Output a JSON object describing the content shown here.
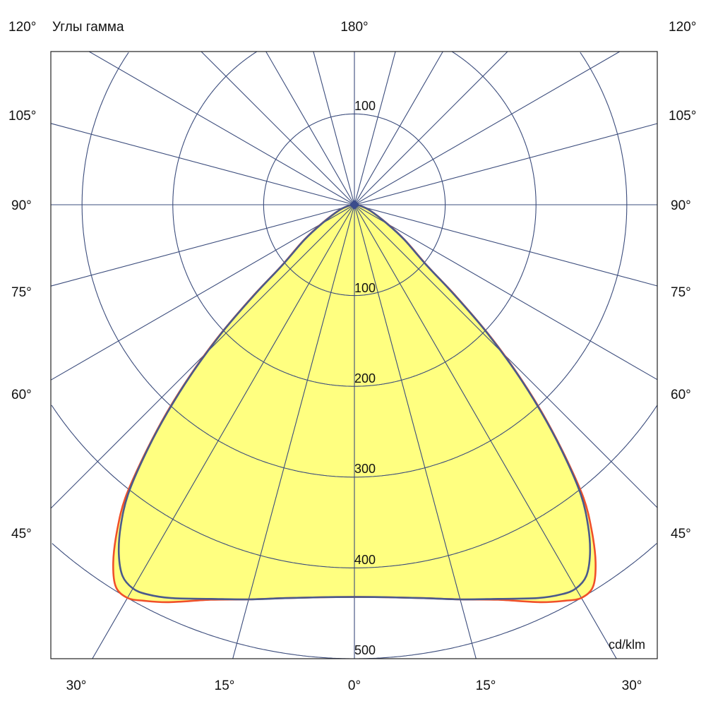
{
  "chart_data": {
    "type": "polar",
    "title": "Углы гамма",
    "unit_label": "cd/klm",
    "radial_ticks": [
      100,
      200,
      300,
      400,
      500
    ],
    "radial_tick_labels_bottom": [
      "100",
      "200",
      "300",
      "400",
      "500"
    ],
    "radial_tick_labels_top": [
      "100"
    ],
    "angle_step_deg": 15,
    "top_label": "180°",
    "left_labels": [
      "120°",
      "105°",
      "90°",
      "75°",
      "60°",
      "45°"
    ],
    "right_labels": [
      "120°",
      "105°",
      "90°",
      "75°",
      "60°",
      "45°"
    ],
    "bottom_labels": [
      "30°",
      "15°",
      "0°",
      "15°",
      "30°"
    ],
    "grid": true,
    "fill_color": "#ffff80",
    "grid_color": "#3b4c7c",
    "series": [
      {
        "color": "#f0502a",
        "gamma": [
          0,
          5,
          10,
          15,
          20,
          25,
          28,
          30,
          32,
          34,
          36,
          38,
          40,
          42,
          44,
          46,
          48,
          50,
          55,
          60,
          70,
          80,
          90
        ],
        "intensity": [
          432,
          434,
          440,
          450,
          463,
          483,
          494,
          500,
          496,
          475,
          445,
          410,
          360,
          310,
          258,
          205,
          150,
          105,
          68,
          42,
          18,
          6,
          0
        ]
      },
      {
        "color": "#4a5a8c",
        "gamma": [
          0,
          5,
          10,
          15,
          20,
          25,
          28,
          30,
          32,
          34,
          36,
          38,
          40,
          42,
          44,
          46,
          48,
          50,
          55,
          60,
          70,
          80,
          90
        ],
        "intensity": [
          432,
          434,
          440,
          450,
          462,
          478,
          486,
          488,
          482,
          464,
          438,
          405,
          358,
          308,
          256,
          203,
          148,
          104,
          67,
          41,
          18,
          6,
          0
        ]
      }
    ]
  }
}
